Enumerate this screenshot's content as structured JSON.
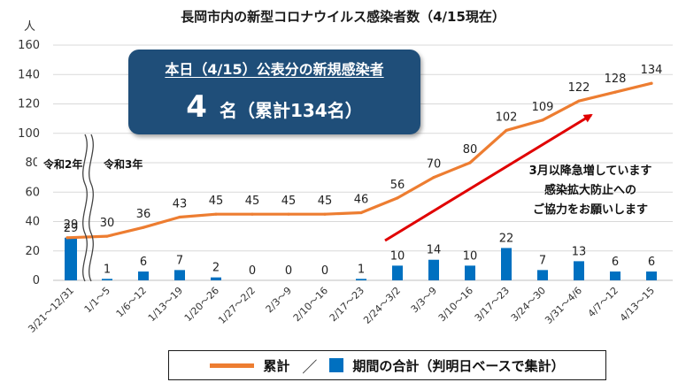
{
  "chart_data": {
    "type": "bar+line",
    "title": "長岡市内の新型コロナウイルス感染者数（4/15現在）",
    "y_unit": "人",
    "ylim": [
      0,
      160
    ],
    "yticks": [
      0,
      20,
      40,
      60,
      80,
      100,
      120,
      140,
      160
    ],
    "categories": [
      "3/21～12/31",
      "1/1～5",
      "1/6～12",
      "1/13～19",
      "1/20～26",
      "1/27～2/2",
      "2/3～9",
      "2/10～16",
      "2/17～23",
      "2/24～3/2",
      "3/3～9",
      "3/10～16",
      "3/17～23",
      "3/24～30",
      "3/31～4/6",
      "4/7～12",
      "4/13～15"
    ],
    "series": [
      {
        "name": "累計",
        "kind": "line",
        "color": "#ed7d31",
        "values": [
          29,
          30,
          36,
          43,
          45,
          45,
          45,
          45,
          46,
          56,
          70,
          80,
          102,
          109,
          122,
          128,
          134
        ]
      },
      {
        "name": "期間の合計（判明日ベースで集計）",
        "kind": "bar",
        "color": "#0070c0",
        "values": [
          29,
          1,
          6,
          7,
          2,
          0,
          0,
          0,
          1,
          10,
          14,
          10,
          22,
          7,
          13,
          6,
          6
        ]
      }
    ],
    "era_labels": [
      "令和2年",
      "令和3年"
    ],
    "grid": "horizontal",
    "legend_position": "bottom"
  },
  "callout": {
    "title": "本日（4/15）公表分の新規感染者",
    "count": "4",
    "rest": "名（累計134名）"
  },
  "note": {
    "lines": [
      "3月以降急増しています",
      "感染拡大防止への",
      "ご協力をお願いします"
    ]
  },
  "legend": {
    "line_label": "累計",
    "separator": "／",
    "bar_label": "期間の合計（判明日ベースで集計）"
  }
}
